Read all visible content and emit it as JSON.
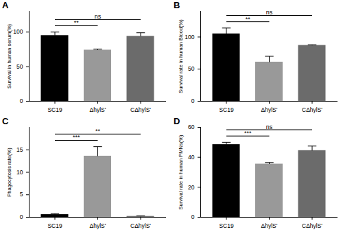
{
  "chart_data": [
    {
      "type": "bar",
      "title": "A",
      "ylabel": "Survival in human serum(%)",
      "categories": [
        "SC19",
        "ΔhylS'",
        "CΔhylS'"
      ],
      "values": [
        95,
        74,
        94
      ],
      "errors": [
        5,
        1.5,
        5
      ],
      "colors": [
        "#000000",
        "#999999",
        "#6b6b6b"
      ],
      "ylim": [
        0,
        130
      ],
      "yticks": [
        0,
        50,
        100
      ],
      "significance": [
        {
          "from": "SC19",
          "to": "ΔhylS'",
          "label": "**"
        },
        {
          "from": "SC19",
          "to": "CΔhylS'",
          "label": "ns"
        }
      ]
    },
    {
      "type": "bar",
      "title": "B",
      "ylabel": "Survival rate in human Blood(%)",
      "categories": [
        "SC19",
        "ΔhylS'",
        "CΔhylS'"
      ],
      "values": [
        105,
        61,
        87
      ],
      "errors": [
        9,
        9,
        1
      ],
      "colors": [
        "#000000",
        "#999999",
        "#6b6b6b"
      ],
      "ylim": [
        0,
        140
      ],
      "yticks": [
        0,
        50,
        100
      ],
      "significance": [
        {
          "from": "SC19",
          "to": "ΔhylS'",
          "label": "**"
        },
        {
          "from": "SC19",
          "to": "CΔhylS'",
          "label": "ns"
        }
      ]
    },
    {
      "type": "bar",
      "title": "C",
      "ylabel": "Phagocytosis rate(%)",
      "categories": [
        "SC19",
        "ΔhylS'",
        "CΔhylS'"
      ],
      "values": [
        0.6,
        13.6,
        0.2
      ],
      "errors": [
        0.2,
        2.1,
        0.1
      ],
      "colors": [
        "#000000",
        "#999999",
        "#6b6b6b"
      ],
      "ylim": [
        0,
        20
      ],
      "yticks": [
        0,
        5,
        10,
        15
      ],
      "significance": [
        {
          "from": "SC19",
          "to": "ΔhylS'",
          "label": "***"
        },
        {
          "from": "SC19",
          "to": "CΔhylS'",
          "label": "**"
        }
      ]
    },
    {
      "type": "bar",
      "title": "D",
      "ylabel": "Survival rate in human PMNs(%)",
      "categories": [
        "SC19",
        "ΔhylS'",
        "CΔhylS'"
      ],
      "values": [
        48.5,
        35.5,
        44.5
      ],
      "errors": [
        1.5,
        1,
        3
      ],
      "colors": [
        "#000000",
        "#999999",
        "#6b6b6b"
      ],
      "ylim": [
        0,
        60
      ],
      "yticks": [
        0,
        20,
        40,
        60
      ],
      "significance": [
        {
          "from": "SC19",
          "to": "ΔhylS'",
          "label": "***"
        },
        {
          "from": "SC19",
          "to": "CΔhylS'",
          "label": "ns"
        }
      ]
    }
  ]
}
